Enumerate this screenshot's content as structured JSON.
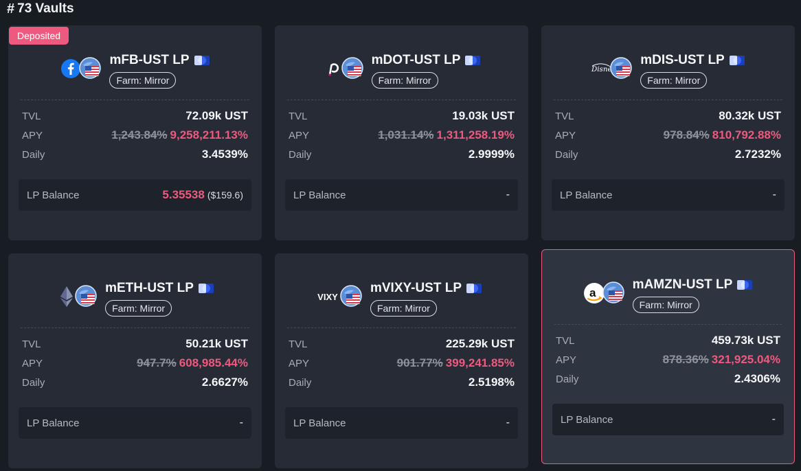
{
  "header": {
    "hash": "#",
    "title": "73 Vaults"
  },
  "labels": {
    "tvl": "TVL",
    "apy": "APY",
    "daily": "Daily",
    "lp_balance": "LP Balance"
  },
  "colors": {
    "accent": "#ee5a7f",
    "card": "#262b35",
    "background": "#181c23"
  },
  "vaults": [
    {
      "name": "mFB-UST LP",
      "token_icon": "facebook-icon",
      "farm": "Farm: Mirror",
      "badge": "Deposited",
      "tvl": "72.09k UST",
      "apy_old": "1,243.84%",
      "apy_new": "9,258,211.13%",
      "daily": "3.4539%",
      "lp_value": "5.35538",
      "lp_usd": "($159.6)",
      "lp_dash": ""
    },
    {
      "name": "mDOT-UST LP",
      "token_icon": "polkadot-icon",
      "farm": "Farm: Mirror",
      "badge": "",
      "tvl": "19.03k UST",
      "apy_old": "1,031.14%",
      "apy_new": "1,311,258.19%",
      "daily": "2.9999%",
      "lp_value": "",
      "lp_usd": "",
      "lp_dash": "-"
    },
    {
      "name": "mDIS-UST LP",
      "token_icon": "disney-icon",
      "farm": "Farm: Mirror",
      "badge": "",
      "tvl": "80.32k UST",
      "apy_old": "978.84%",
      "apy_new": "810,792.88%",
      "daily": "2.7232%",
      "lp_value": "",
      "lp_usd": "",
      "lp_dash": "-"
    },
    {
      "name": "mETH-UST LP",
      "token_icon": "ethereum-icon",
      "farm": "Farm: Mirror",
      "badge": "",
      "tvl": "50.21k UST",
      "apy_old": "947.7%",
      "apy_new": "608,985.44%",
      "daily": "2.6627%",
      "lp_value": "",
      "lp_usd": "",
      "lp_dash": "-"
    },
    {
      "name": "mVIXY-UST LP",
      "token_icon": "vixy-icon",
      "token_text": "VIXY",
      "farm": "Farm: Mirror",
      "badge": "",
      "tvl": "225.29k UST",
      "apy_old": "901.77%",
      "apy_new": "399,241.85%",
      "daily": "2.5198%",
      "lp_value": "",
      "lp_usd": "",
      "lp_dash": "-"
    },
    {
      "name": "mAMZN-UST LP",
      "token_icon": "amazon-icon",
      "farm": "Farm: Mirror",
      "badge": "",
      "tvl": "459.73k UST",
      "apy_old": "878.36%",
      "apy_new": "321,925.04%",
      "daily": "2.4306%",
      "lp_value": "",
      "lp_usd": "",
      "lp_dash": "-"
    }
  ]
}
